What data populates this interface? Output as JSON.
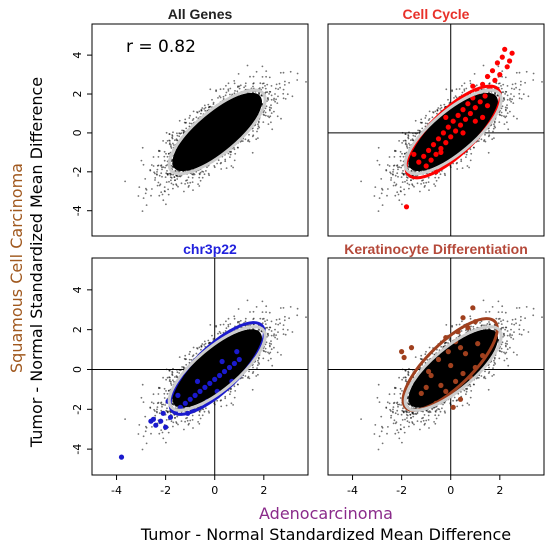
{
  "chart_data": {
    "type": "scatter",
    "xlabel_group": "Adenocarcinoma",
    "xlabel": "Tumor - Normal Standardized Mean Difference",
    "ylabel_group": "Squamous Cell Carcinoma",
    "ylabel": "Tumor - Normal Standardized Mean Difference",
    "xlim": [
      -5,
      3.8
    ],
    "ylim": [
      -5.3,
      5.6
    ],
    "xticks": [
      "-4",
      "-2",
      "0",
      "2"
    ],
    "yticks": [
      "-4",
      "-2",
      "0",
      "2",
      "4"
    ],
    "correlation_label": "r = 0.82",
    "background_color": "#000000",
    "ellipse_color": "#cccccc",
    "panels": [
      {
        "title": "All Genes",
        "title_color": "#222222",
        "highlight_color": null,
        "show_zero_lines": false,
        "highlight_points": []
      },
      {
        "title": "Cell Cycle",
        "title_color": "#e8312a",
        "highlight_color": "#ff0000",
        "show_zero_lines": true,
        "highlight_points": [
          [
            2.2,
            4.3
          ],
          [
            2.5,
            4.1
          ],
          [
            2.1,
            3.9
          ],
          [
            1.9,
            3.6
          ],
          [
            2.3,
            3.4
          ],
          [
            1.7,
            3.2
          ],
          [
            2.0,
            3.0
          ],
          [
            1.5,
            2.9
          ],
          [
            1.8,
            2.7
          ],
          [
            1.3,
            2.5
          ],
          [
            1.6,
            2.3
          ],
          [
            1.1,
            2.1
          ],
          [
            1.4,
            1.9
          ],
          [
            0.9,
            1.8
          ],
          [
            1.2,
            1.6
          ],
          [
            0.7,
            1.5
          ],
          [
            1.0,
            1.3
          ],
          [
            0.5,
            1.2
          ],
          [
            0.8,
            1.0
          ],
          [
            0.3,
            0.9
          ],
          [
            0.6,
            0.7
          ],
          [
            0.1,
            0.6
          ],
          [
            0.4,
            0.4
          ],
          [
            -0.1,
            0.3
          ],
          [
            0.2,
            0.1
          ],
          [
            -0.3,
            0.0
          ],
          [
            0.0,
            -0.2
          ],
          [
            -0.5,
            -0.3
          ],
          [
            -0.2,
            -0.5
          ],
          [
            -0.7,
            -0.6
          ],
          [
            -0.4,
            -0.8
          ],
          [
            -0.9,
            -0.9
          ],
          [
            -0.6,
            -1.1
          ],
          [
            -1.1,
            -1.2
          ],
          [
            -0.8,
            -1.4
          ],
          [
            -1.3,
            -1.5
          ],
          [
            -1.0,
            -1.7
          ],
          [
            -0.4,
            -1.0
          ],
          [
            0.5,
            0.0
          ],
          [
            1.0,
            0.6
          ],
          [
            1.5,
            1.4
          ],
          [
            2.4,
            3.7
          ],
          [
            -1.5,
            -1.1
          ],
          [
            -0.2,
            0.8
          ],
          [
            0.9,
            2.4
          ],
          [
            1.3,
            0.8
          ],
          [
            -0.6,
            -2.0
          ],
          [
            -1.8,
            -3.8
          ]
        ]
      },
      {
        "title": "chr3p22",
        "title_color": "#2222dd",
        "highlight_color": "#1a1acd",
        "show_zero_lines": true,
        "highlight_points": [
          [
            -3.8,
            -4.4
          ],
          [
            -2.6,
            -2.6
          ],
          [
            -2.4,
            -2.8
          ],
          [
            -2.2,
            -2.6
          ],
          [
            -2.0,
            -2.9
          ],
          [
            -2.5,
            -2.5
          ],
          [
            -1.8,
            -2.4
          ],
          [
            -1.6,
            -2.1
          ],
          [
            -1.4,
            -1.9
          ],
          [
            -1.2,
            -1.7
          ],
          [
            -1.0,
            -1.5
          ],
          [
            -0.8,
            -1.3
          ],
          [
            -0.6,
            -1.1
          ],
          [
            -0.4,
            -0.9
          ],
          [
            -0.2,
            -0.7
          ],
          [
            0.0,
            -0.5
          ],
          [
            0.2,
            -0.3
          ],
          [
            0.4,
            -0.1
          ],
          [
            0.6,
            0.1
          ],
          [
            0.8,
            0.3
          ],
          [
            1.0,
            0.5
          ],
          [
            -1.5,
            -1.3
          ],
          [
            -1.1,
            -2.2
          ],
          [
            -0.7,
            -0.6
          ],
          [
            -0.3,
            -1.6
          ],
          [
            0.3,
            0.4
          ],
          [
            0.7,
            -0.6
          ],
          [
            -1.9,
            -1.6
          ],
          [
            -0.9,
            -2.0
          ],
          [
            0.1,
            -1.1
          ],
          [
            0.9,
            0.9
          ],
          [
            -2.1,
            -2.2
          ]
        ]
      },
      {
        "title": "Keratinocyte Differentiation",
        "title_color": "#b5493a",
        "highlight_color": "#a0401e",
        "show_zero_lines": true,
        "highlight_points": [
          [
            0.9,
            3.1
          ],
          [
            0.5,
            2.6
          ],
          [
            0.7,
            2.1
          ],
          [
            1.0,
            2.4
          ],
          [
            0.3,
            1.9
          ],
          [
            0.4,
            1.1
          ],
          [
            -0.2,
            1.6
          ],
          [
            1.1,
            1.3
          ],
          [
            0.6,
            0.8
          ],
          [
            -1.9,
            0.6
          ],
          [
            -1.6,
            1.1
          ],
          [
            -2.0,
            0.9
          ],
          [
            -0.5,
            0.5
          ],
          [
            0.0,
            0.2
          ],
          [
            0.5,
            -0.2
          ],
          [
            1.0,
            0.1
          ],
          [
            -0.8,
            -0.3
          ],
          [
            -0.4,
            -0.8
          ],
          [
            0.2,
            -0.6
          ],
          [
            0.8,
            -0.4
          ],
          [
            -1.0,
            -0.9
          ],
          [
            -0.2,
            -1.1
          ],
          [
            0.4,
            -1.5
          ],
          [
            -0.6,
            -1.7
          ],
          [
            0.1,
            -1.9
          ],
          [
            -0.9,
            -0.1
          ],
          [
            -0.1,
            0.9
          ],
          [
            0.2,
            1.4
          ],
          [
            1.3,
            0.7
          ],
          [
            -1.2,
            -1.2
          ]
        ]
      }
    ]
  }
}
